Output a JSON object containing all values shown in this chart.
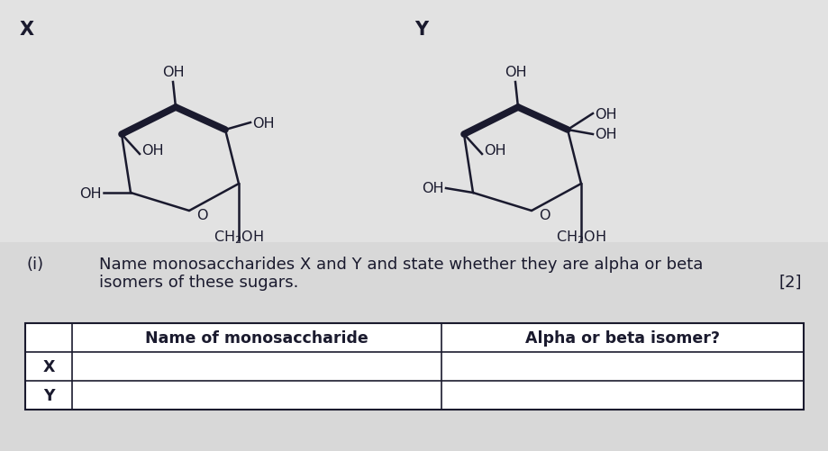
{
  "bg_outer": "#c8c8c8",
  "bg_panel": "#e8e8e8",
  "text_color": "#1a1a2e",
  "label_X": "X",
  "label_Y": "Y",
  "question_label": "(i)",
  "question_text_line1": "Name monosaccharides X and Y and state whether they are alpha or beta",
  "question_text_line2": "isomers of these sugars.",
  "marks": "[2]",
  "table_header_col1": "Name of monosaccharide",
  "table_header_col2": "Alpha or beta isomer?",
  "table_row1": "X",
  "table_row2": "Y",
  "font_size_label": 15,
  "font_size_chem": 11.5,
  "font_size_question": 13,
  "font_size_table": 12.5,
  "line_color": "#1a1a2e",
  "bold_lw": 5.5,
  "thin_lw": 1.8
}
